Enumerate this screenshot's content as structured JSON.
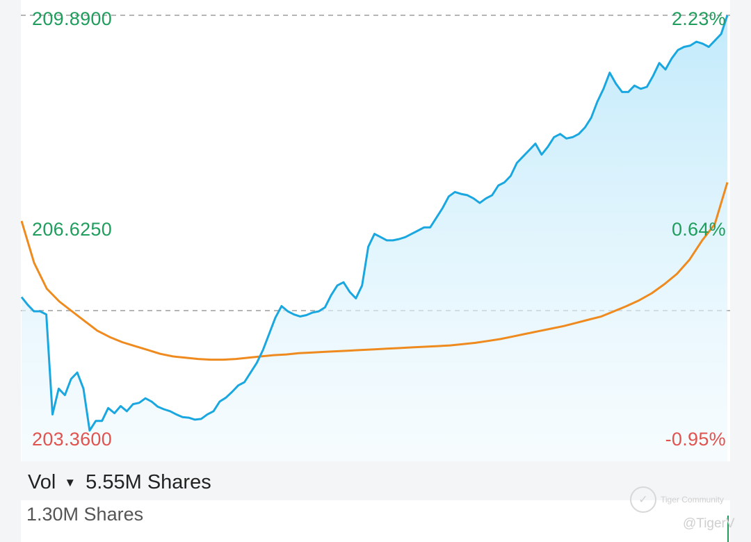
{
  "chart_data": {
    "type": "line",
    "y_axis_left": {
      "max_label": "209.8900",
      "mid_label": "206.6250",
      "min_label": "203.3600"
    },
    "y_axis_right": {
      "max_label": "2.23%",
      "mid_label": "0.64%",
      "min_label": "-0.95%"
    },
    "ylim": [
      203.36,
      209.89
    ],
    "reference_price": 205.31,
    "series": [
      {
        "role": "price",
        "color": "#1aa7e0",
        "fill": "light-blue-gradient",
        "values": [
          205.52,
          205.4,
          205.3,
          205.3,
          205.25,
          203.7,
          204.1,
          204.0,
          204.25,
          204.35,
          204.1,
          203.45,
          203.6,
          203.6,
          203.8,
          203.72,
          203.83,
          203.75,
          203.86,
          203.88,
          203.95,
          203.9,
          203.82,
          203.78,
          203.75,
          203.7,
          203.66,
          203.65,
          203.62,
          203.63,
          203.7,
          203.75,
          203.9,
          203.96,
          204.05,
          204.15,
          204.2,
          204.35,
          204.5,
          204.7,
          204.95,
          205.2,
          205.38,
          205.3,
          205.25,
          205.22,
          205.24,
          205.28,
          205.3,
          205.36,
          205.55,
          205.7,
          205.75,
          205.6,
          205.5,
          205.7,
          206.3,
          206.5,
          206.45,
          206.4,
          206.4,
          206.42,
          206.45,
          206.5,
          206.55,
          206.6,
          206.6,
          206.75,
          206.9,
          207.08,
          207.15,
          207.12,
          207.1,
          207.05,
          206.98,
          207.05,
          207.1,
          207.25,
          207.3,
          207.4,
          207.6,
          207.7,
          207.8,
          207.9,
          207.73,
          207.85,
          208.0,
          208.05,
          207.98,
          208.0,
          208.05,
          208.15,
          208.3,
          208.55,
          208.75,
          209.0,
          208.83,
          208.7,
          208.7,
          208.8,
          208.75,
          208.78,
          208.95,
          209.15,
          209.05,
          209.22,
          209.35,
          209.4,
          209.42,
          209.48,
          209.45,
          209.4,
          209.5,
          209.6,
          209.89
        ]
      },
      {
        "role": "average",
        "color": "#ef8a1e",
        "values": [
          206.7,
          206.05,
          205.65,
          205.45,
          205.3,
          205.15,
          205.0,
          204.9,
          204.82,
          204.76,
          204.7,
          204.64,
          204.6,
          204.58,
          204.56,
          204.55,
          204.55,
          204.56,
          204.58,
          204.6,
          204.62,
          204.63,
          204.65,
          204.66,
          204.67,
          204.68,
          204.69,
          204.7,
          204.71,
          204.72,
          204.73,
          204.74,
          204.75,
          204.76,
          204.77,
          204.79,
          204.81,
          204.84,
          204.87,
          204.91,
          204.95,
          204.99,
          205.03,
          205.07,
          205.12,
          205.17,
          205.22,
          205.3,
          205.38,
          205.47,
          205.58,
          205.72,
          205.88,
          206.1,
          206.4,
          206.65,
          207.3
        ]
      }
    ]
  },
  "volume": {
    "header_label": "Vol",
    "dropdown_icon": "triangle-down-icon",
    "total": "5.55M Shares",
    "max_label": "1.30M Shares"
  },
  "watermark": {
    "brand": "Tiger Community",
    "handle": "@TigerV"
  }
}
